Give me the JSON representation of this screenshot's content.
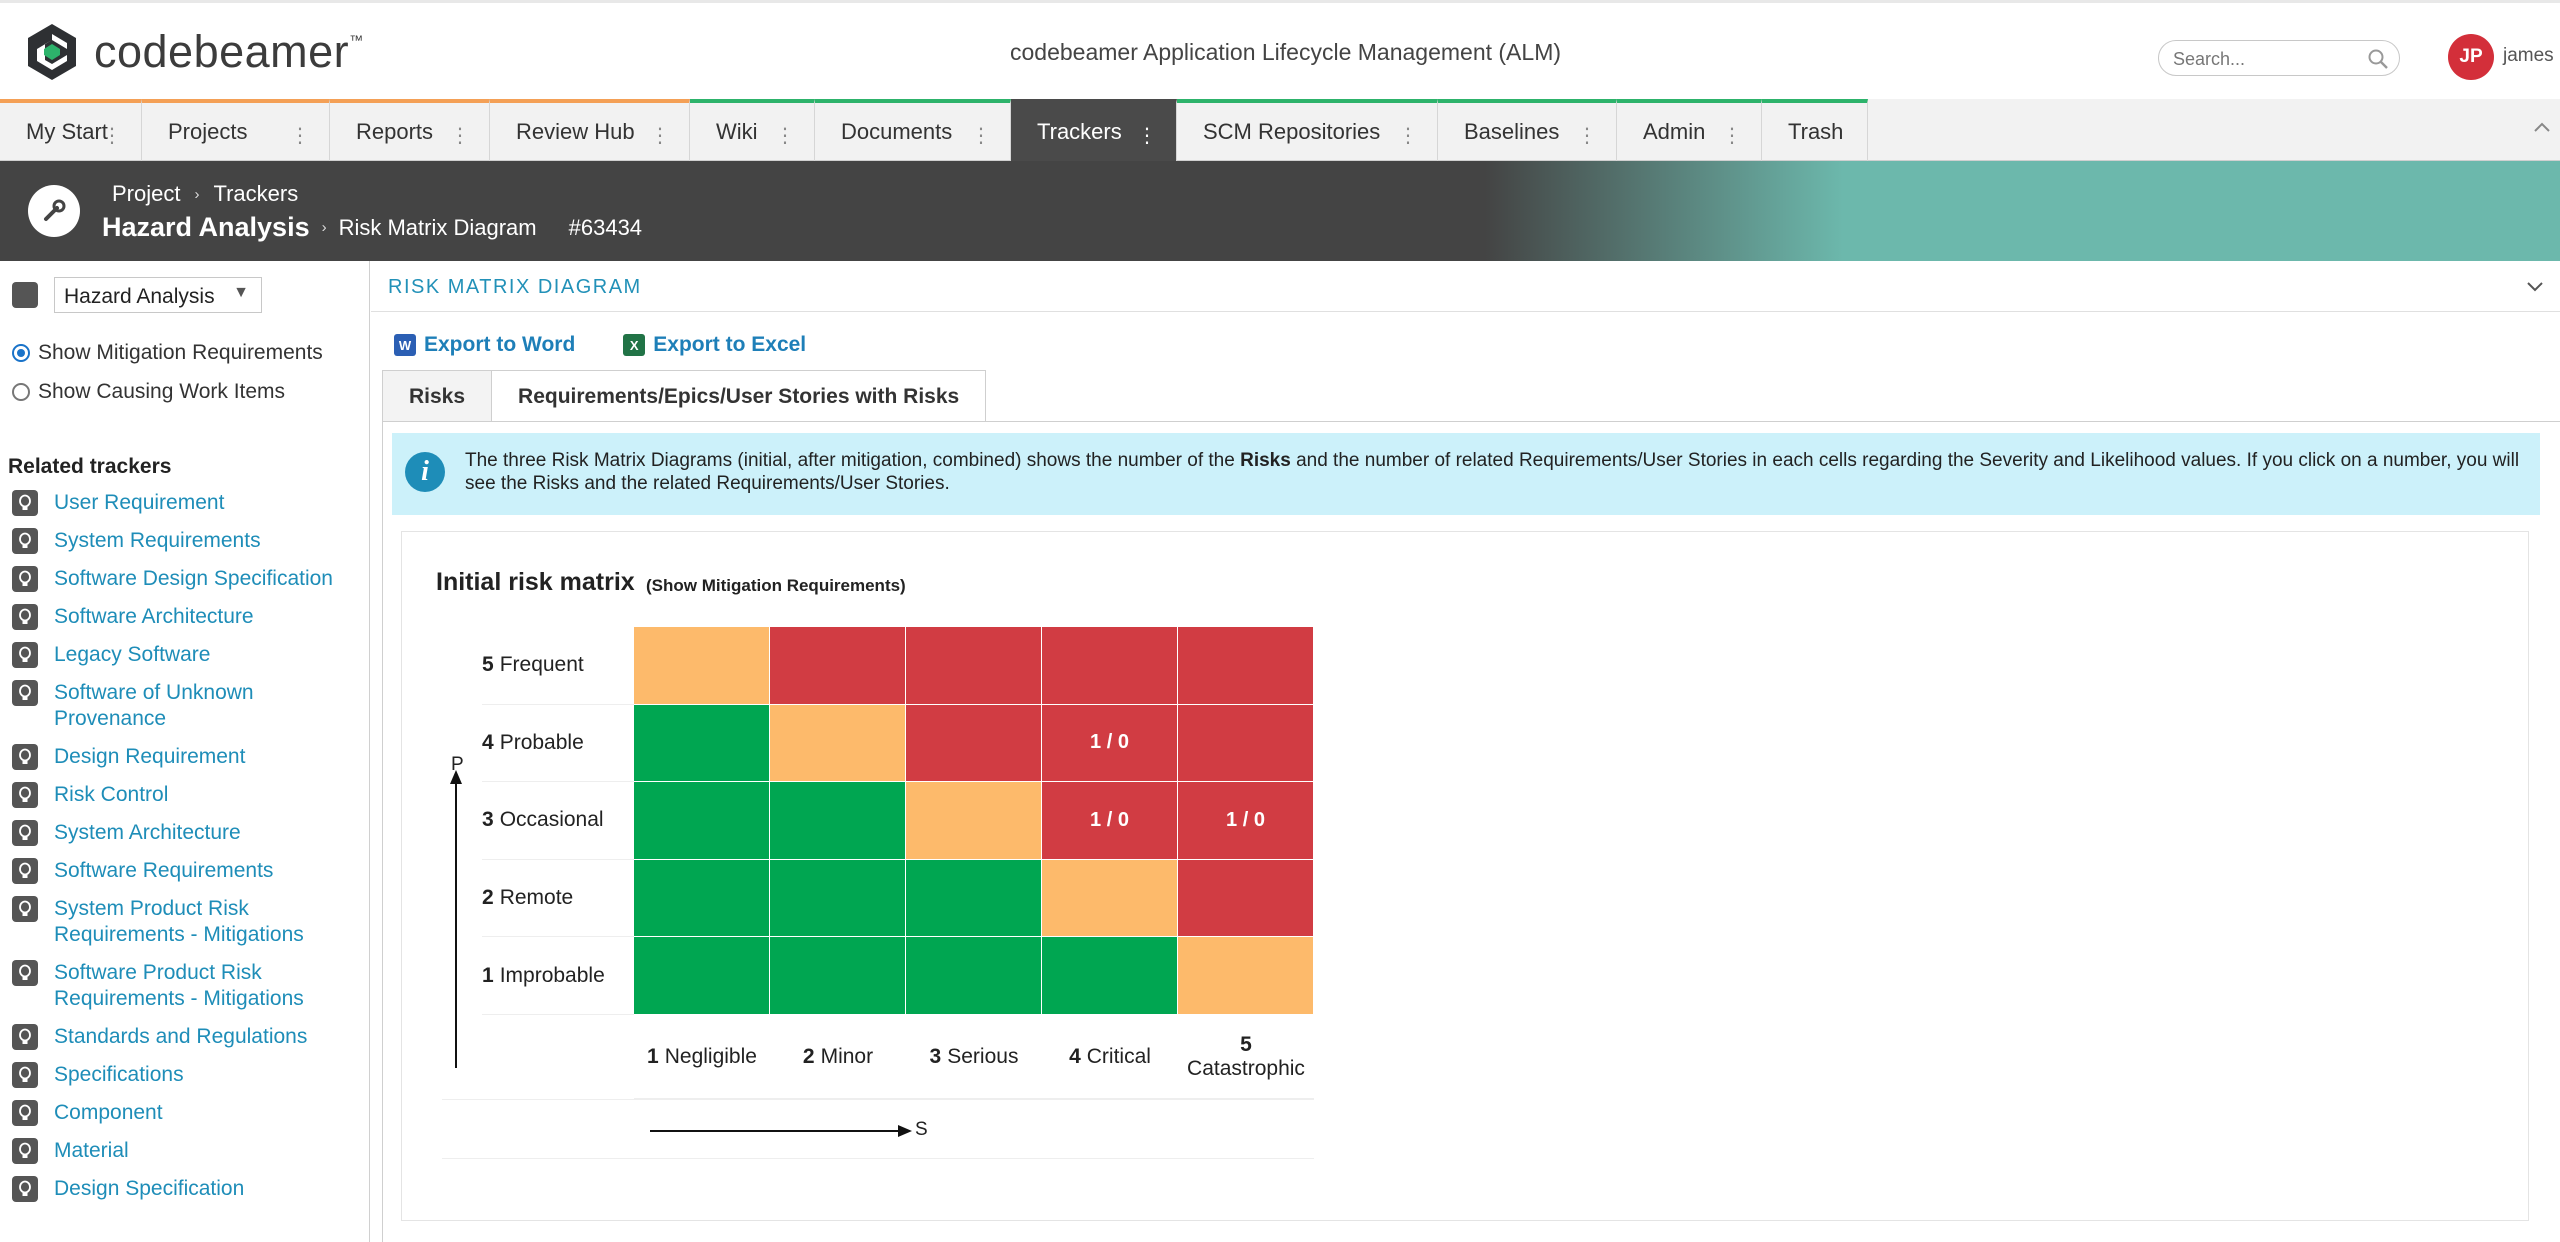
{
  "header": {
    "logo_text": "codebeamer",
    "logo_mark": "™",
    "app_title": "codebeamer Application Lifecycle Management (ALM)",
    "search_placeholder": "Search...",
    "avatar_initials": "JP",
    "username": "james"
  },
  "nav": {
    "items": [
      {
        "label": "My Start"
      },
      {
        "label": "Projects"
      },
      {
        "label": "Reports"
      },
      {
        "label": "Review Hub"
      },
      {
        "label": "Wiki"
      },
      {
        "label": "Documents"
      },
      {
        "label": "Trackers"
      },
      {
        "label": "SCM Repositories"
      },
      {
        "label": "Baselines"
      },
      {
        "label": "Admin"
      },
      {
        "label": "Trash"
      }
    ],
    "active": "Trackers"
  },
  "breadcrumb": {
    "project": "Project",
    "trackers": "Trackers",
    "project_name": "Hazard Analysis",
    "page": "Risk Matrix Diagram",
    "id": "#63434"
  },
  "sidebar": {
    "tracker_select": "Hazard Analysis",
    "radio_mitigation": "Show Mitigation Requirements",
    "radio_causing": "Show Causing Work Items",
    "related_title": "Related trackers",
    "trackers": [
      {
        "label": "User Requirement"
      },
      {
        "label": "System Requirements"
      },
      {
        "label": "Software Design Specification"
      },
      {
        "label": "Software Architecture"
      },
      {
        "label": "Legacy Software"
      },
      {
        "label": "Software of Unknown Provenance"
      },
      {
        "label": "Design Requirement"
      },
      {
        "label": "Risk Control"
      },
      {
        "label": "System Architecture"
      },
      {
        "label": "Software Requirements"
      },
      {
        "label": "System Product Risk Requirements - Mitigations"
      },
      {
        "label": "Software Product Risk Requirements - Mitigations"
      },
      {
        "label": "Standards and Regulations"
      },
      {
        "label": "Specifications"
      },
      {
        "label": "Component"
      },
      {
        "label": "Material"
      },
      {
        "label": "Design Specification"
      }
    ]
  },
  "main": {
    "section_title": "RISK MATRIX DIAGRAM",
    "export_word": "Export to Word",
    "export_excel": "Export to Excel",
    "tabs": [
      {
        "label": "Risks"
      },
      {
        "label": "Requirements/Epics/User Stories with Risks"
      }
    ],
    "info_pre": "The three Risk Matrix Diagrams (initial, after mitigation, combined) shows the number of the ",
    "info_bold": "Risks",
    "info_post": " and the number of related Requirements/User Stories in each cells regarding the Severity and Likelihood values. If you click on a number, you will see the Risks and the related Requirements/User Stories."
  },
  "matrix": {
    "title": "Initial risk matrix",
    "subtitle": "(Show Mitigation Requirements)",
    "rows": [
      {
        "num": "5",
        "label": "Frequent"
      },
      {
        "num": "4",
        "label": "Probable"
      },
      {
        "num": "3",
        "label": "Occasional"
      },
      {
        "num": "2",
        "label": "Remote"
      },
      {
        "num": "1",
        "label": "Improbable"
      }
    ],
    "cols": [
      {
        "num": "1",
        "label": "Negligible"
      },
      {
        "num": "2",
        "label": "Minor"
      },
      {
        "num": "3",
        "label": "Serious"
      },
      {
        "num": "4",
        "label": "Critical"
      },
      {
        "num": "5",
        "label": "Catastrophic"
      }
    ],
    "cells": [
      [
        {
          "level": "o",
          "value": ""
        },
        {
          "level": "r",
          "value": ""
        },
        {
          "level": "r",
          "value": ""
        },
        {
          "level": "r",
          "value": ""
        },
        {
          "level": "r",
          "value": ""
        }
      ],
      [
        {
          "level": "g",
          "value": ""
        },
        {
          "level": "o",
          "value": ""
        },
        {
          "level": "r",
          "value": ""
        },
        {
          "level": "r",
          "value": "1 / 0"
        },
        {
          "level": "r",
          "value": ""
        }
      ],
      [
        {
          "level": "g",
          "value": ""
        },
        {
          "level": "g",
          "value": ""
        },
        {
          "level": "o",
          "value": ""
        },
        {
          "level": "r",
          "value": "1 / 0"
        },
        {
          "level": "r",
          "value": "1 / 0"
        }
      ],
      [
        {
          "level": "g",
          "value": ""
        },
        {
          "level": "g",
          "value": ""
        },
        {
          "level": "g",
          "value": ""
        },
        {
          "level": "o",
          "value": ""
        },
        {
          "level": "r",
          "value": ""
        }
      ],
      [
        {
          "level": "g",
          "value": ""
        },
        {
          "level": "g",
          "value": ""
        },
        {
          "level": "g",
          "value": ""
        },
        {
          "level": "g",
          "value": ""
        },
        {
          "level": "o",
          "value": ""
        }
      ]
    ],
    "axis_p": "P",
    "axis_s": "S",
    "colors": {
      "green": "#00a651",
      "orange": "#fdba6b",
      "red": "#d13c43"
    }
  }
}
